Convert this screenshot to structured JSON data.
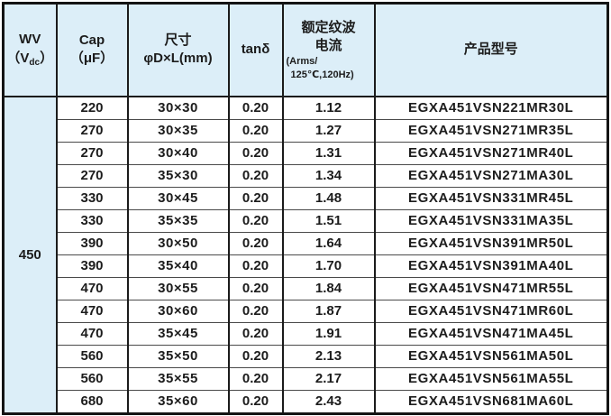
{
  "header": {
    "wv": {
      "line1": "WV",
      "paren_open": "（V",
      "sub": "dc",
      "paren_close": "）"
    },
    "cap": {
      "line1": "Cap",
      "line2": "（μF）"
    },
    "size": {
      "line1": "尺寸",
      "line2": "φD×L(mm)"
    },
    "tan": {
      "label": "tanδ"
    },
    "ripple": {
      "line1": "额定纹波",
      "line2": "电流",
      "line3": "(Arms/",
      "line4": "125℃,120Hz)"
    },
    "model": {
      "label": "产品型号"
    }
  },
  "table": {
    "wv_value": "450",
    "rows": [
      {
        "cap": "220",
        "size": "30×30",
        "tan": "0.20",
        "ripple": "1.12",
        "model": "EGXA451VSN221MR30L"
      },
      {
        "cap": "270",
        "size": "30×35",
        "tan": "0.20",
        "ripple": "1.27",
        "model": "EGXA451VSN271MR35L"
      },
      {
        "cap": "270",
        "size": "30×40",
        "tan": "0.20",
        "ripple": "1.31",
        "model": "EGXA451VSN271MR40L"
      },
      {
        "cap": "270",
        "size": "35×30",
        "tan": "0.20",
        "ripple": "1.34",
        "model": "EGXA451VSN271MA30L"
      },
      {
        "cap": "330",
        "size": "30×45",
        "tan": "0.20",
        "ripple": "1.48",
        "model": "EGXA451VSN331MR45L"
      },
      {
        "cap": "330",
        "size": "35×35",
        "tan": "0.20",
        "ripple": "1.51",
        "model": "EGXA451VSN331MA35L"
      },
      {
        "cap": "390",
        "size": "30×50",
        "tan": "0.20",
        "ripple": "1.64",
        "model": "EGXA451VSN391MR50L"
      },
      {
        "cap": "390",
        "size": "35×40",
        "tan": "0.20",
        "ripple": "1.70",
        "model": "EGXA451VSN391MA40L"
      },
      {
        "cap": "470",
        "size": "30×55",
        "tan": "0.20",
        "ripple": "1.84",
        "model": "EGXA451VSN471MR55L"
      },
      {
        "cap": "470",
        "size": "30×60",
        "tan": "0.20",
        "ripple": "1.87",
        "model": "EGXA451VSN471MR60L"
      },
      {
        "cap": "470",
        "size": "35×45",
        "tan": "0.20",
        "ripple": "1.91",
        "model": "EGXA451VSN471MA45L"
      },
      {
        "cap": "560",
        "size": "35×50",
        "tan": "0.20",
        "ripple": "2.13",
        "model": "EGXA451VSN561MA50L"
      },
      {
        "cap": "560",
        "size": "35×55",
        "tan": "0.20",
        "ripple": "2.17",
        "model": "EGXA451VSN561MA55L"
      },
      {
        "cap": "680",
        "size": "35×60",
        "tan": "0.20",
        "ripple": "2.43",
        "model": "EGXA451VSN681MA60L"
      }
    ]
  },
  "colors": {
    "header_bg": "#dceef8",
    "outer_border": "#141414",
    "row_line": "#4a4a4a",
    "text": "#1c1c1c"
  }
}
